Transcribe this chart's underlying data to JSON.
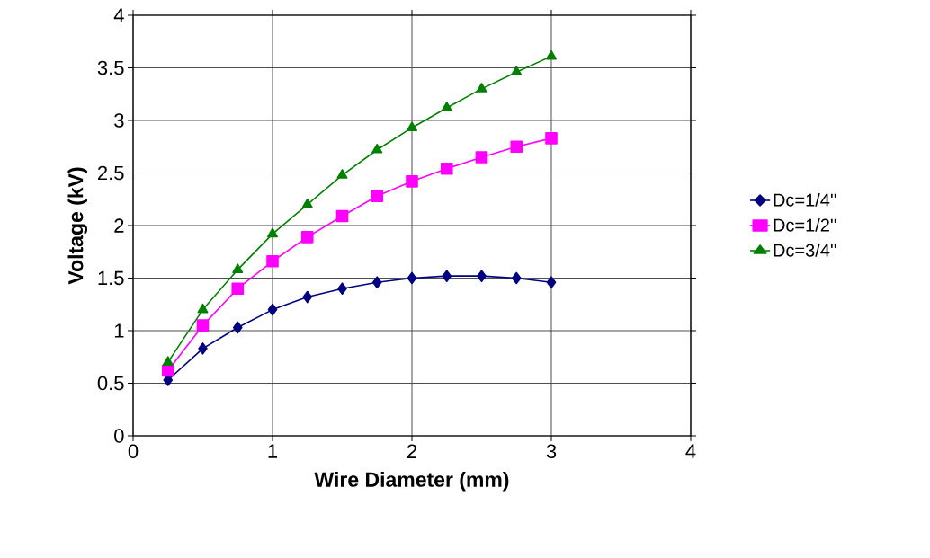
{
  "chart_data": {
    "type": "line",
    "xlabel": "Wire Diameter (mm)",
    "ylabel": "Voltage (kV)",
    "x": [
      0.25,
      0.5,
      0.75,
      1,
      1.25,
      1.5,
      1.75,
      2,
      2.25,
      2.5,
      2.75,
      3
    ],
    "series": [
      {
        "name": "Dc=1/4''",
        "color": "#000080",
        "marker": "diamond",
        "values": [
          0.53,
          0.83,
          1.03,
          1.2,
          1.32,
          1.4,
          1.46,
          1.5,
          1.52,
          1.52,
          1.5,
          1.46
        ]
      },
      {
        "name": "Dc=1/2''",
        "color": "#ff00ff",
        "marker": "square",
        "values": [
          0.62,
          1.05,
          1.4,
          1.66,
          1.89,
          2.09,
          2.28,
          2.42,
          2.54,
          2.65,
          2.75,
          2.83
        ]
      },
      {
        "name": "Dc=3/4''",
        "color": "#008000",
        "marker": "triangle",
        "values": [
          0.7,
          1.2,
          1.58,
          1.92,
          2.2,
          2.48,
          2.72,
          2.93,
          3.12,
          3.3,
          3.46,
          3.61
        ]
      }
    ],
    "xlim": [
      0,
      4
    ],
    "ylim": [
      0,
      4
    ],
    "xticks": [
      0,
      1,
      2,
      3,
      4
    ],
    "yticks": [
      0,
      0.5,
      1,
      1.5,
      2,
      2.5,
      3,
      3.5,
      4
    ],
    "grid": true,
    "legend": "right",
    "line_style": "solid"
  }
}
